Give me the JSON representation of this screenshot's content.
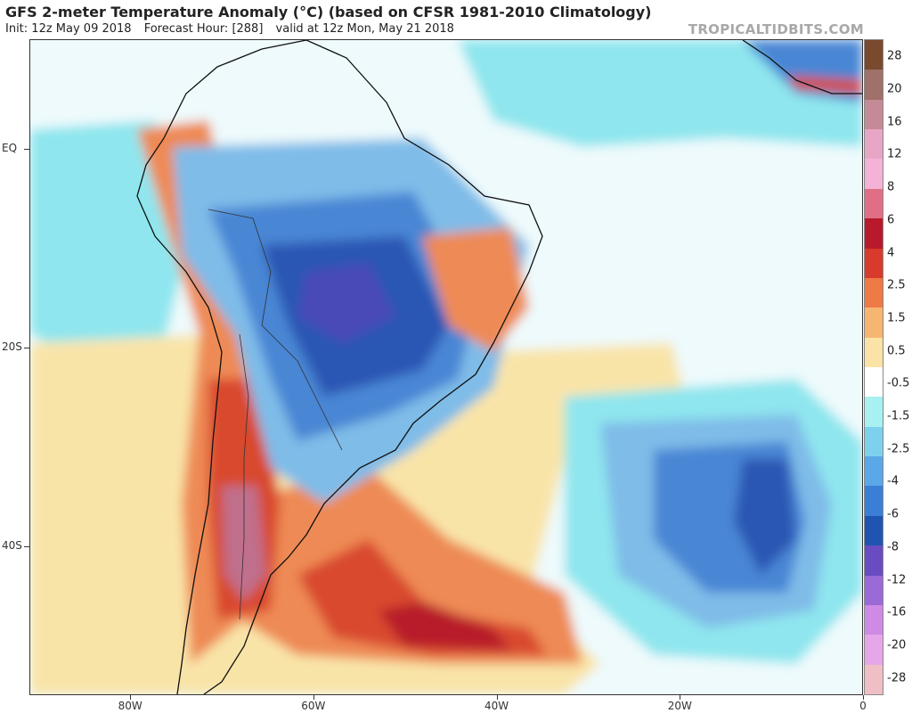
{
  "header": {
    "title": "GFS 2-meter Temperature Anomaly (°C) (based on CFSR 1981-2010 Climatology)",
    "init": "Init: 12z May 09 2018",
    "forecast_hour": "Forecast Hour: [288]",
    "valid": "valid at 12z Mon, May 21 2018",
    "brand": "TROPICALTIDBITS.COM"
  },
  "axes": {
    "lat_labels": [
      {
        "text": "EQ",
        "lat": 0
      },
      {
        "text": "20S",
        "lat": -20
      },
      {
        "text": "40S",
        "lat": -40
      }
    ],
    "lon_labels": [
      {
        "text": "80W",
        "lon": -80
      },
      {
        "text": "60W",
        "lon": -60
      },
      {
        "text": "40W",
        "lon": -40
      },
      {
        "text": "20W",
        "lon": -20
      },
      {
        "text": "0",
        "lon": 0
      }
    ]
  },
  "colorbar": {
    "labels": [
      "28",
      "20",
      "16",
      "12",
      "8",
      "6",
      "4",
      "2.5",
      "1.5",
      "0.5",
      "-0.5",
      "-1.5",
      "-2.5",
      "-4",
      "-6",
      "-8",
      "-12",
      "-16",
      "-20",
      "-28"
    ],
    "colors": [
      "#7a4a2e",
      "#a0706a",
      "#c48a96",
      "#e7a6c6",
      "#f4b2d8",
      "#e06f86",
      "#b8192b",
      "#d83a2c",
      "#ee7a45",
      "#f6b672",
      "#fbe2a6",
      "#ffffff",
      "#a9f0f0",
      "#7ed1ec",
      "#5aa8e8",
      "#3b7ed6",
      "#1f55b0",
      "#6a4cc2",
      "#9a6ad6",
      "#cf8ae6",
      "#e6a6ea",
      "#f0bfc6"
    ]
  },
  "map": {
    "extent": {
      "lon": [
        -91,
        0
      ],
      "lat": [
        11,
        -55
      ]
    },
    "palette": {
      "ocean_cool": "#8fe6ee",
      "pale": "#f9e4a8",
      "warm_light": "#f5c28a",
      "warm": "#ee8a55",
      "warm_strong": "#d9492f",
      "hot": "#b81d2a",
      "very_hot": "#c0708c",
      "cool": "#7fbce8",
      "cold": "#4a86d4",
      "very_cold": "#2a56b4",
      "coldest": "#4a4ab8"
    }
  }
}
